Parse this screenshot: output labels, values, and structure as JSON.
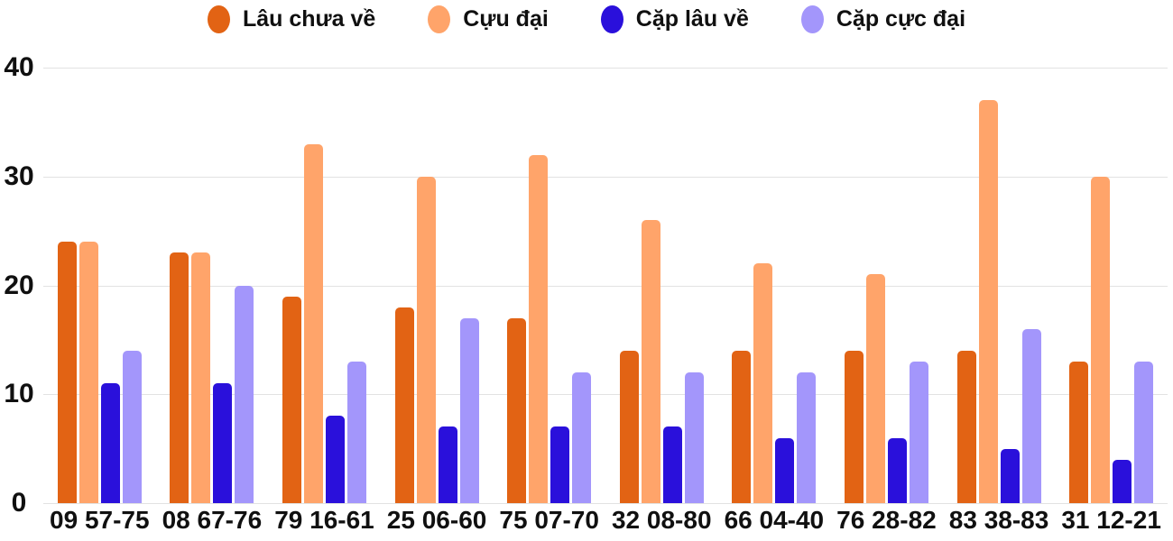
{
  "chart_data": {
    "type": "bar",
    "title": "",
    "xlabel": "",
    "ylabel": "",
    "categories": [
      "09 57-75",
      "08 67-76",
      "79 16-61",
      "25 06-60",
      "75 07-70",
      "32 08-80",
      "66 04-40",
      "76 28-82",
      "83 38-83",
      "31 12-21"
    ],
    "series": [
      {
        "name": "Lâu chưa về",
        "color": "#E26314",
        "values": [
          24,
          23,
          19,
          18,
          17,
          14,
          14,
          14,
          14,
          13
        ]
      },
      {
        "name": "Cựu đại",
        "color": "#FFA46A",
        "values": [
          24,
          23,
          33,
          30,
          32,
          26,
          22,
          21,
          37,
          30
        ]
      },
      {
        "name": "Cặp lâu về",
        "color": "#2A10DB",
        "values": [
          11,
          11,
          8,
          7,
          7,
          7,
          6,
          6,
          5,
          4
        ]
      },
      {
        "name": "Cặp cực đại",
        "color": "#A396FB",
        "values": [
          14,
          20,
          13,
          17,
          12,
          12,
          12,
          13,
          16,
          13
        ]
      }
    ],
    "ylim": [
      0,
      40
    ],
    "y_ticks": [
      "40",
      "30",
      "20",
      "10",
      "0"
    ],
    "grid": true,
    "legend_position": "top"
  },
  "styles": {
    "background": "#ffffff",
    "grid_color": "#e2e2e2",
    "text_color": "#101010"
  }
}
